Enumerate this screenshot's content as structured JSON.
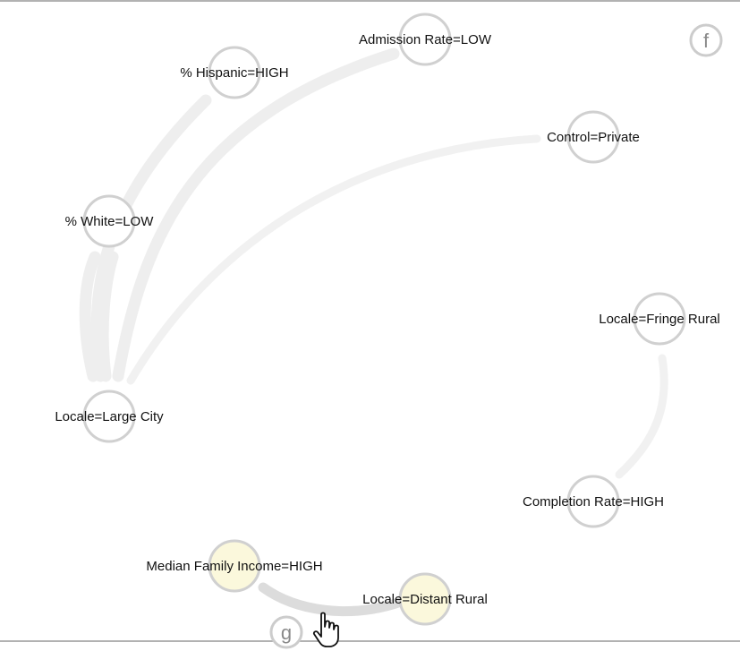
{
  "graph": {
    "nodes": [
      {
        "id": "admission-rate-low",
        "label": "Admission Rate=LOW",
        "highlighted": false
      },
      {
        "id": "hispanic-high",
        "label": "% Hispanic=HIGH",
        "highlighted": false
      },
      {
        "id": "control-private",
        "label": "Control=Private",
        "highlighted": false
      },
      {
        "id": "white-low",
        "label": "% White=LOW",
        "highlighted": false
      },
      {
        "id": "locale-fringe-rural",
        "label": "Locale=Fringe Rural",
        "highlighted": false
      },
      {
        "id": "locale-large-city",
        "label": "Locale=Large City",
        "highlighted": false
      },
      {
        "id": "completion-rate-high",
        "label": "Completion Rate=HIGH",
        "highlighted": false
      },
      {
        "id": "median-family-income-high",
        "label": "Median Family Income=HIGH",
        "highlighted": true
      },
      {
        "id": "locale-distant-rural",
        "label": "Locale=Distant Rural",
        "highlighted": true
      }
    ],
    "edges": [
      {
        "from": "locale-large-city",
        "to": "hispanic-high",
        "emphasis": "normal"
      },
      {
        "from": "locale-large-city",
        "to": "admission-rate-low",
        "emphasis": "normal"
      },
      {
        "from": "locale-large-city",
        "to": "control-private",
        "emphasis": "faint"
      },
      {
        "from": "locale-large-city",
        "to": "white-low",
        "emphasis": "normal"
      },
      {
        "from": "locale-fringe-rural",
        "to": "completion-rate-high",
        "emphasis": "faint"
      },
      {
        "from": "median-family-income-high",
        "to": "locale-distant-rural",
        "emphasis": "strong"
      }
    ]
  },
  "badges": {
    "f": "f",
    "g": "g"
  },
  "colors": {
    "node_stroke": "#d0d0d0",
    "node_fill": "#ffffff",
    "node_highlight_fill": "#fbf8dc",
    "edge_normal": "#eeeeee",
    "edge_faint": "#f1f1f1",
    "edge_strong": "#dcdcdc",
    "badge_stroke": "#cccccc",
    "frame_line": "#999999"
  }
}
